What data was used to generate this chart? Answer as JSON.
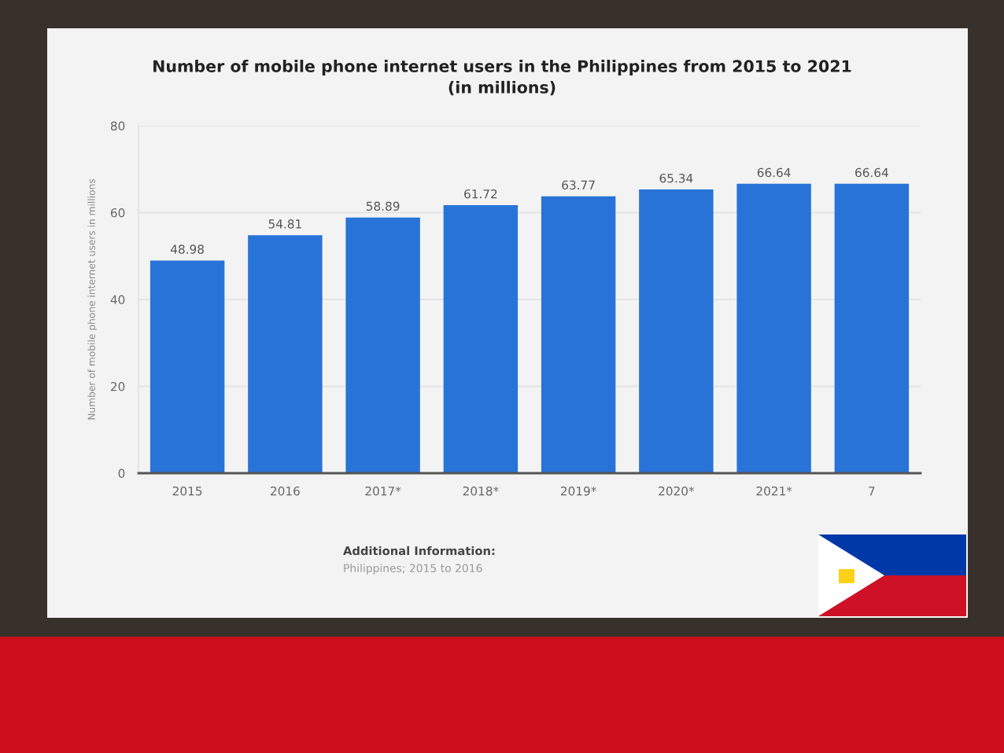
{
  "chart_data": {
    "type": "bar",
    "title": "Number of mobile phone internet users in the Philippines from 2015 to 2021\n(in millions)",
    "ylabel": "Number of mobile phone internet users in millions",
    "categories": [
      "2015",
      "2016",
      "2017*",
      "2018*",
      "2019*",
      "2020*",
      "2021*",
      "7"
    ],
    "values": [
      48.98,
      54.81,
      58.89,
      61.72,
      63.77,
      65.34,
      66.64,
      66.64
    ],
    "color": "#2873d8",
    "ylim": [
      0,
      80
    ],
    "yticks": [
      0,
      20,
      40,
      60,
      80
    ],
    "grid": "y",
    "data_labels": true,
    "annotations": [
      "Additional Information:",
      "Philippines; 2015 to 2016"
    ]
  }
}
